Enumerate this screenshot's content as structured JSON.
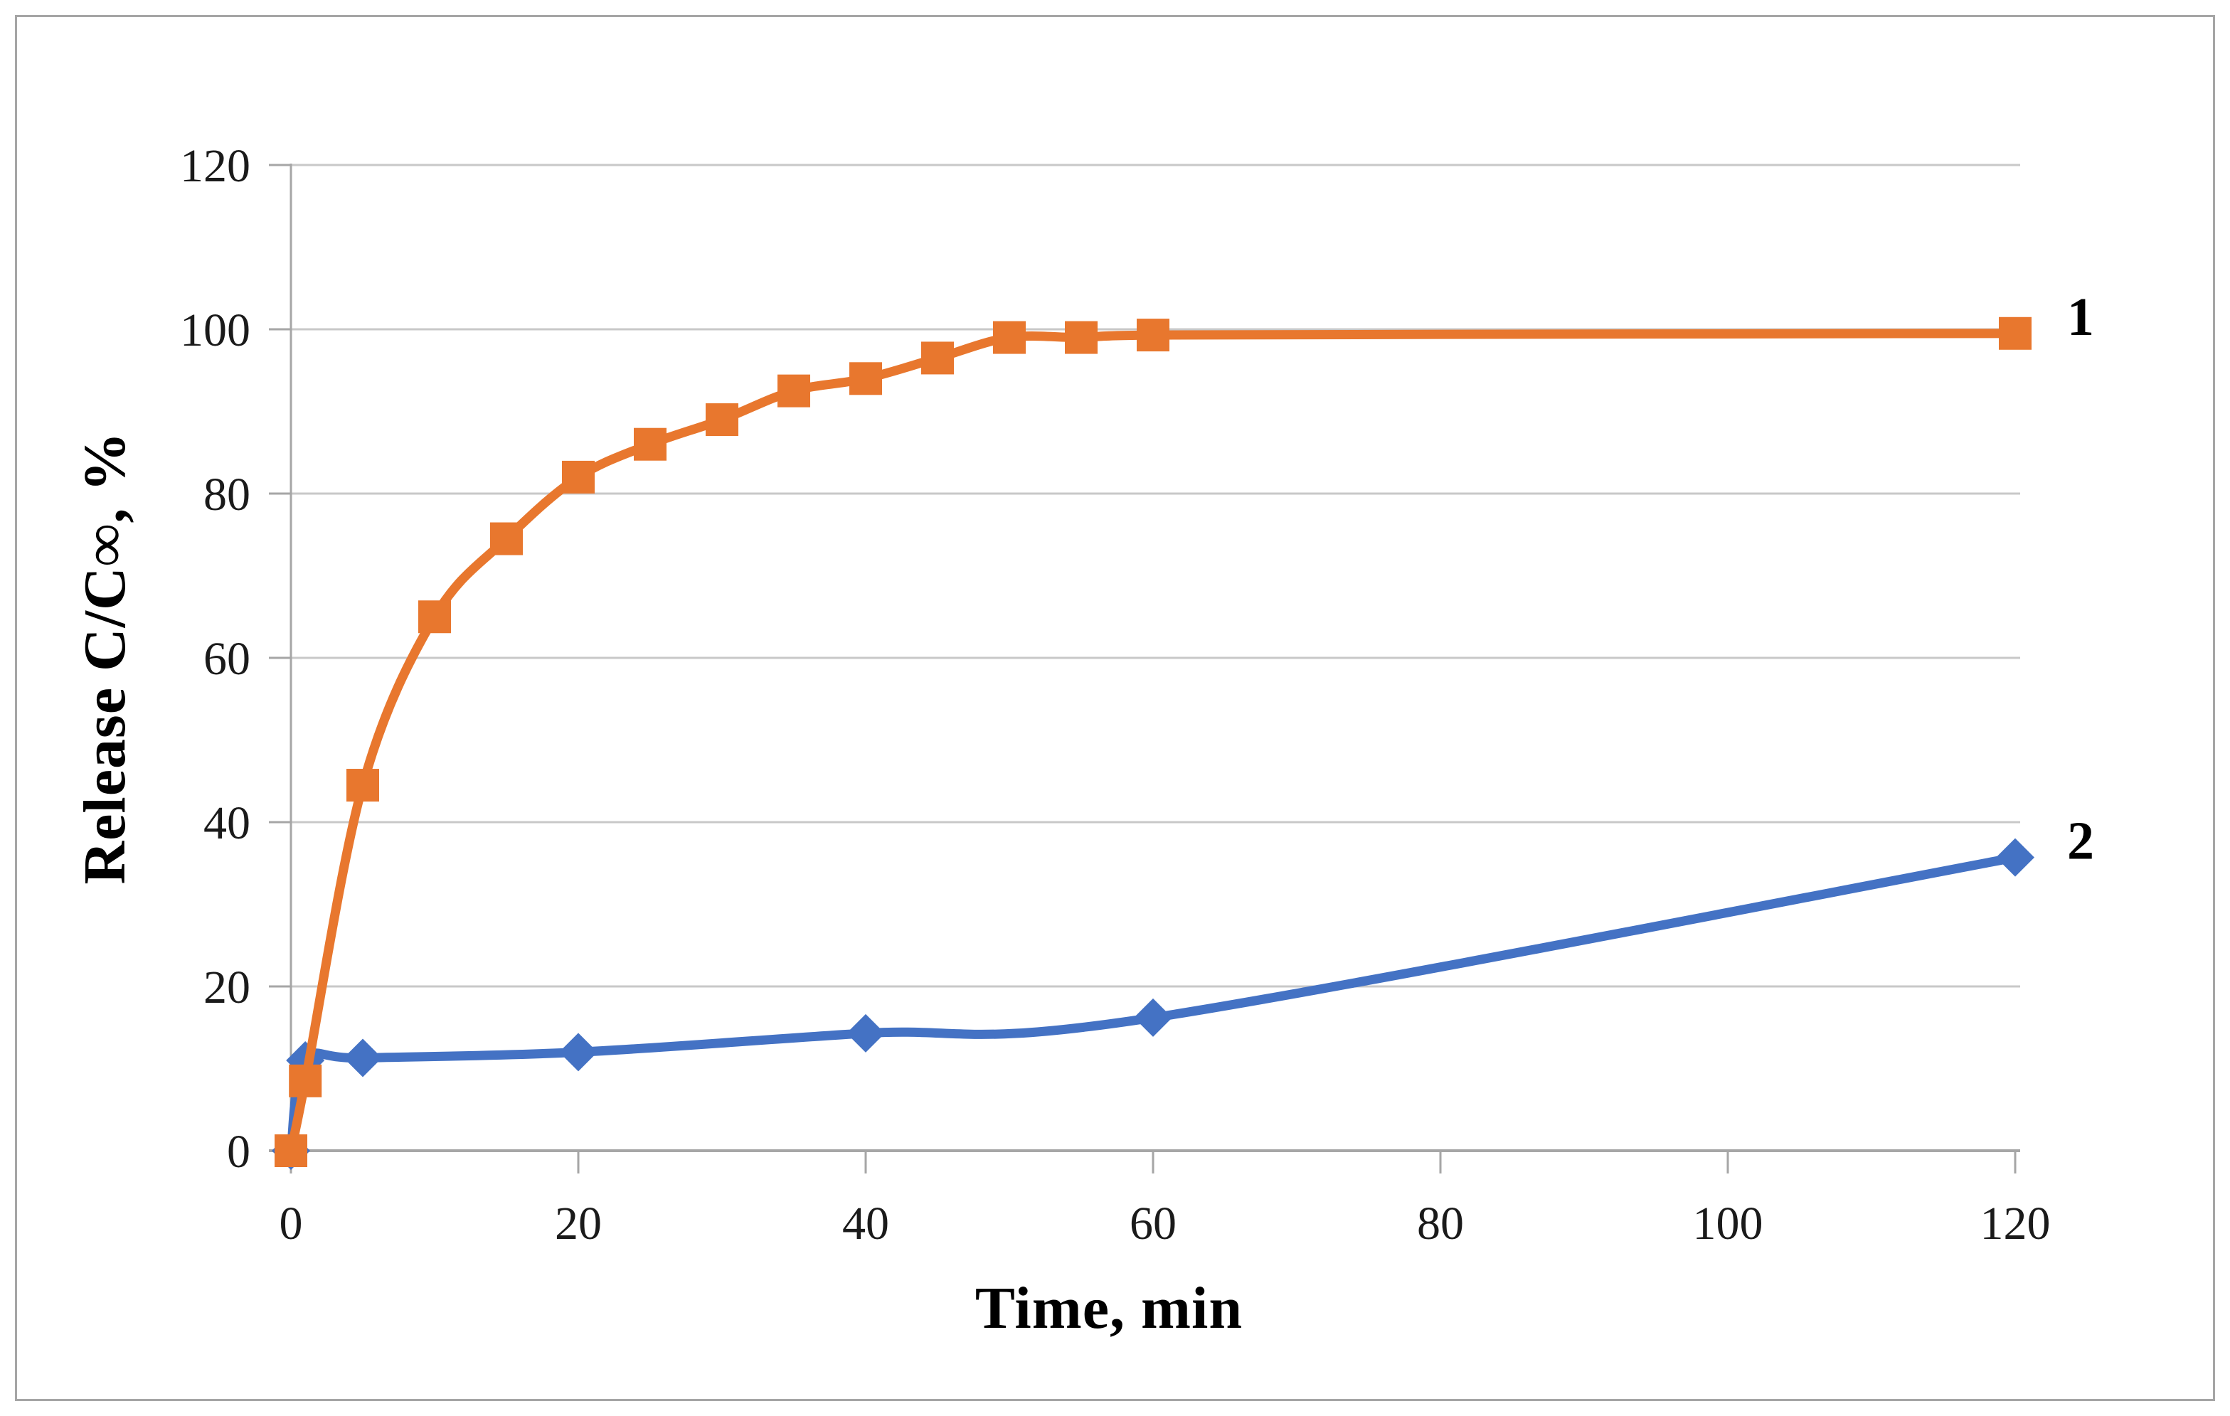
{
  "figure": {
    "background": "#ffffff",
    "frame_color": "#a6a6a6"
  },
  "chart_data": {
    "type": "line",
    "title": "",
    "xlabel": "Time, min",
    "ylabel": "Release C/C∞, %",
    "xlim": [
      0,
      120
    ],
    "ylim": [
      0,
      120
    ],
    "x_ticks": [
      0,
      20,
      40,
      60,
      80,
      100,
      120
    ],
    "y_ticks": [
      0,
      20,
      40,
      60,
      80,
      100,
      120
    ],
    "grid": "horizontal-major",
    "legend_position": "series labels right of last data point",
    "series": [
      {
        "name": "1",
        "color": "#e8772e",
        "marker": "square",
        "line_style": "smooth",
        "x": [
          0,
          1,
          5,
          10,
          15,
          20,
          25,
          30,
          35,
          40,
          45,
          50,
          55,
          60,
          120
        ],
        "y": [
          0,
          8.5,
          44.5,
          65,
          74.5,
          82,
          86,
          89,
          92.5,
          94,
          96.5,
          99,
          99,
          99.3,
          99.5
        ]
      },
      {
        "name": "2",
        "color": "#4472c4",
        "marker": "diamond",
        "line_style": "smooth",
        "x": [
          0,
          1,
          5,
          20,
          40,
          60,
          120
        ],
        "y": [
          0,
          11,
          11.3,
          12,
          14.3,
          16.2,
          35.7
        ]
      }
    ]
  },
  "styles": {
    "grid_color": "#c8c8c8",
    "axis_color": "#a6a6a6",
    "tick_color": "#a6a6a6",
    "text_color": "#1a1a1a"
  }
}
